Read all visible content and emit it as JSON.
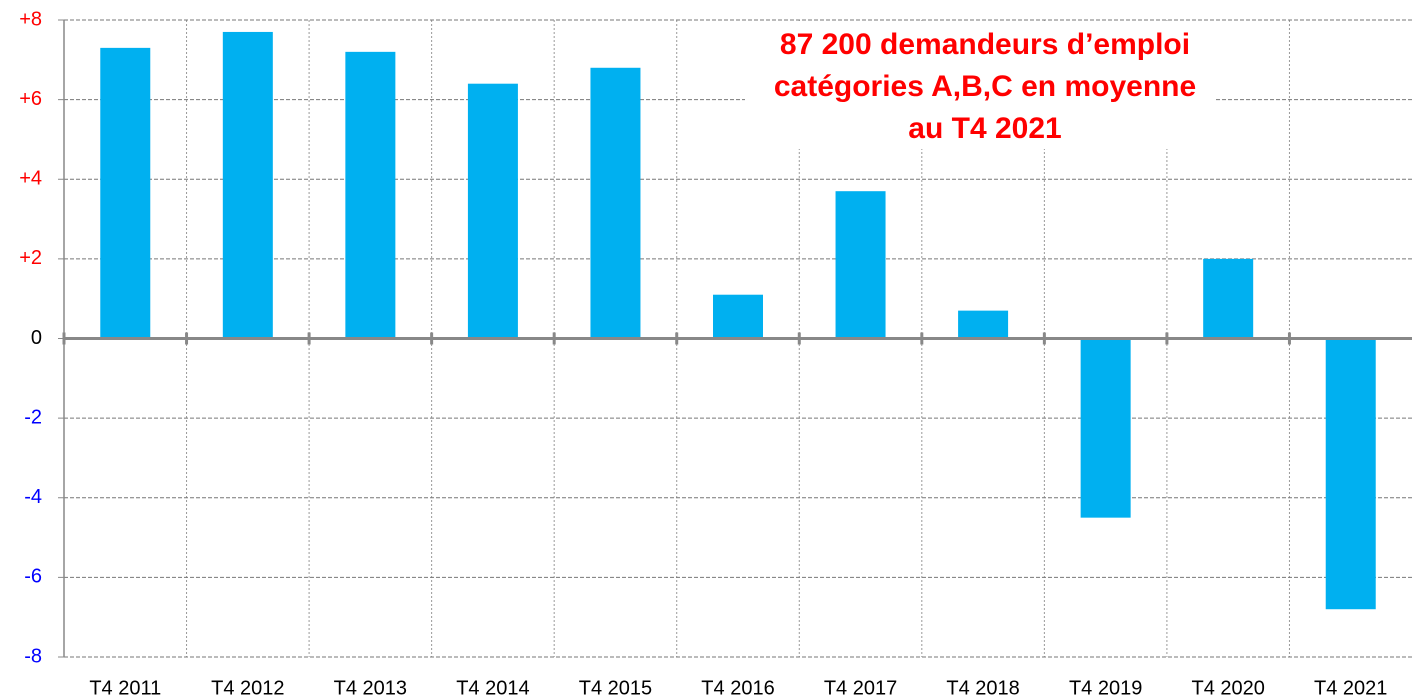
{
  "chart_data": {
    "type": "bar",
    "annotation": [
      "87 200 demandeurs d’emploi",
      "catégories A,B,C en moyenne",
      "au T4 2021"
    ],
    "categories": [
      "T4 2011",
      "T4 2012",
      "T4 2013",
      "T4 2014",
      "T4 2015",
      "T4 2016",
      "T4 2017",
      "T4 2018",
      "T4 2019",
      "T4 2020",
      "T4 2021"
    ],
    "values": [
      7.3,
      7.7,
      7.2,
      6.4,
      6.8,
      1.1,
      3.7,
      0.7,
      -4.5,
      2.0,
      -6.8
    ],
    "color": "#00b0f0",
    "ylim": [
      -8,
      8
    ],
    "yticks": [
      {
        "value": 8,
        "label": "+8"
      },
      {
        "value": 6,
        "label": "+6"
      },
      {
        "value": 4,
        "label": "+4"
      },
      {
        "value": 2,
        "label": "+2"
      },
      0,
      -2,
      -4,
      -6,
      -8
    ],
    "positive_tick_color": "#ff0000",
    "negative_tick_color": "#0000ff",
    "annotation_color": "#ff0000",
    "grid": true
  }
}
